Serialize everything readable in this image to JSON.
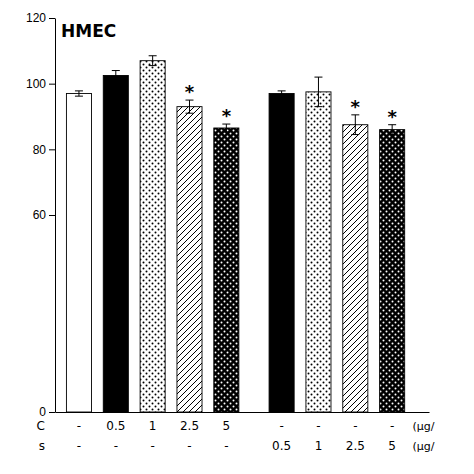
{
  "chart_data": {
    "type": "bar",
    "title": "HMEC",
    "values": [
      97.0,
      102.5,
      107.0,
      93.0,
      86.5,
      97.0,
      97.5,
      87.5,
      86.0
    ],
    "errors": [
      0.8,
      1.5,
      1.5,
      2.0,
      1.2,
      0.8,
      4.5,
      3.0,
      1.5
    ],
    "colors": [
      "white",
      "black",
      "white",
      "white",
      "black",
      "black",
      "white",
      "white",
      "black"
    ],
    "significance": [
      null,
      null,
      null,
      "*",
      "*",
      null,
      null,
      "*",
      "*"
    ],
    "category_rows": [
      {
        "name": "C",
        "labels": [
          "-",
          "0.5",
          "1",
          "2.5",
          "5",
          "-",
          "-",
          "-",
          "-"
        ],
        "unit": "(μg/"
      },
      {
        "name": "s",
        "labels": [
          "-",
          "-",
          "-",
          "-",
          "-",
          "0.5",
          "1",
          "2.5",
          "5"
        ],
        "unit": "(μg/"
      }
    ],
    "ylim": [
      0,
      120
    ],
    "yticks": [
      0,
      60,
      80,
      100,
      120
    ],
    "grid": false
  }
}
